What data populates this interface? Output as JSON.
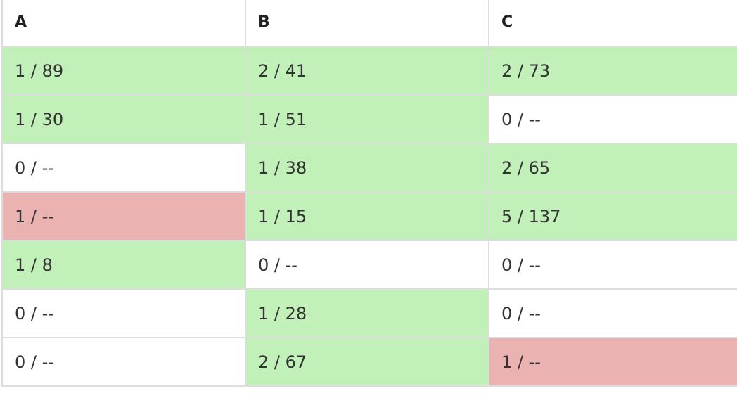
{
  "headers": [
    "A",
    "B",
    "C"
  ],
  "rows": [
    [
      {
        "text": "1 / 89",
        "status": "solved"
      },
      {
        "text": "2 / 41",
        "status": "solved"
      },
      {
        "text": "2 / 73",
        "status": "solved"
      }
    ],
    [
      {
        "text": "1 / 30",
        "status": "solved"
      },
      {
        "text": "1 / 51",
        "status": "solved"
      },
      {
        "text": "0 / --",
        "status": "none"
      }
    ],
    [
      {
        "text": "0 / --",
        "status": "none"
      },
      {
        "text": "1 / 38",
        "status": "solved"
      },
      {
        "text": "2 / 65",
        "status": "solved"
      }
    ],
    [
      {
        "text": "1 / --",
        "status": "attempted"
      },
      {
        "text": "1 / 15",
        "status": "solved"
      },
      {
        "text": "5 / 137",
        "status": "solved"
      }
    ],
    [
      {
        "text": "1 / 8",
        "status": "solved"
      },
      {
        "text": "0 / --",
        "status": "none"
      },
      {
        "text": "0 / --",
        "status": "none"
      }
    ],
    [
      {
        "text": "0 / --",
        "status": "none"
      },
      {
        "text": "1 / 28",
        "status": "solved"
      },
      {
        "text": "0 / --",
        "status": "none"
      }
    ],
    [
      {
        "text": "0 / --",
        "status": "none"
      },
      {
        "text": "2 / 67",
        "status": "solved"
      },
      {
        "text": "1 / --",
        "status": "attempted"
      }
    ]
  ],
  "colors": {
    "solved": "#c1f1b9",
    "attempted": "#ebb2b2",
    "none": "#ffffff",
    "border": "#dddddd",
    "text": "#333333"
  }
}
